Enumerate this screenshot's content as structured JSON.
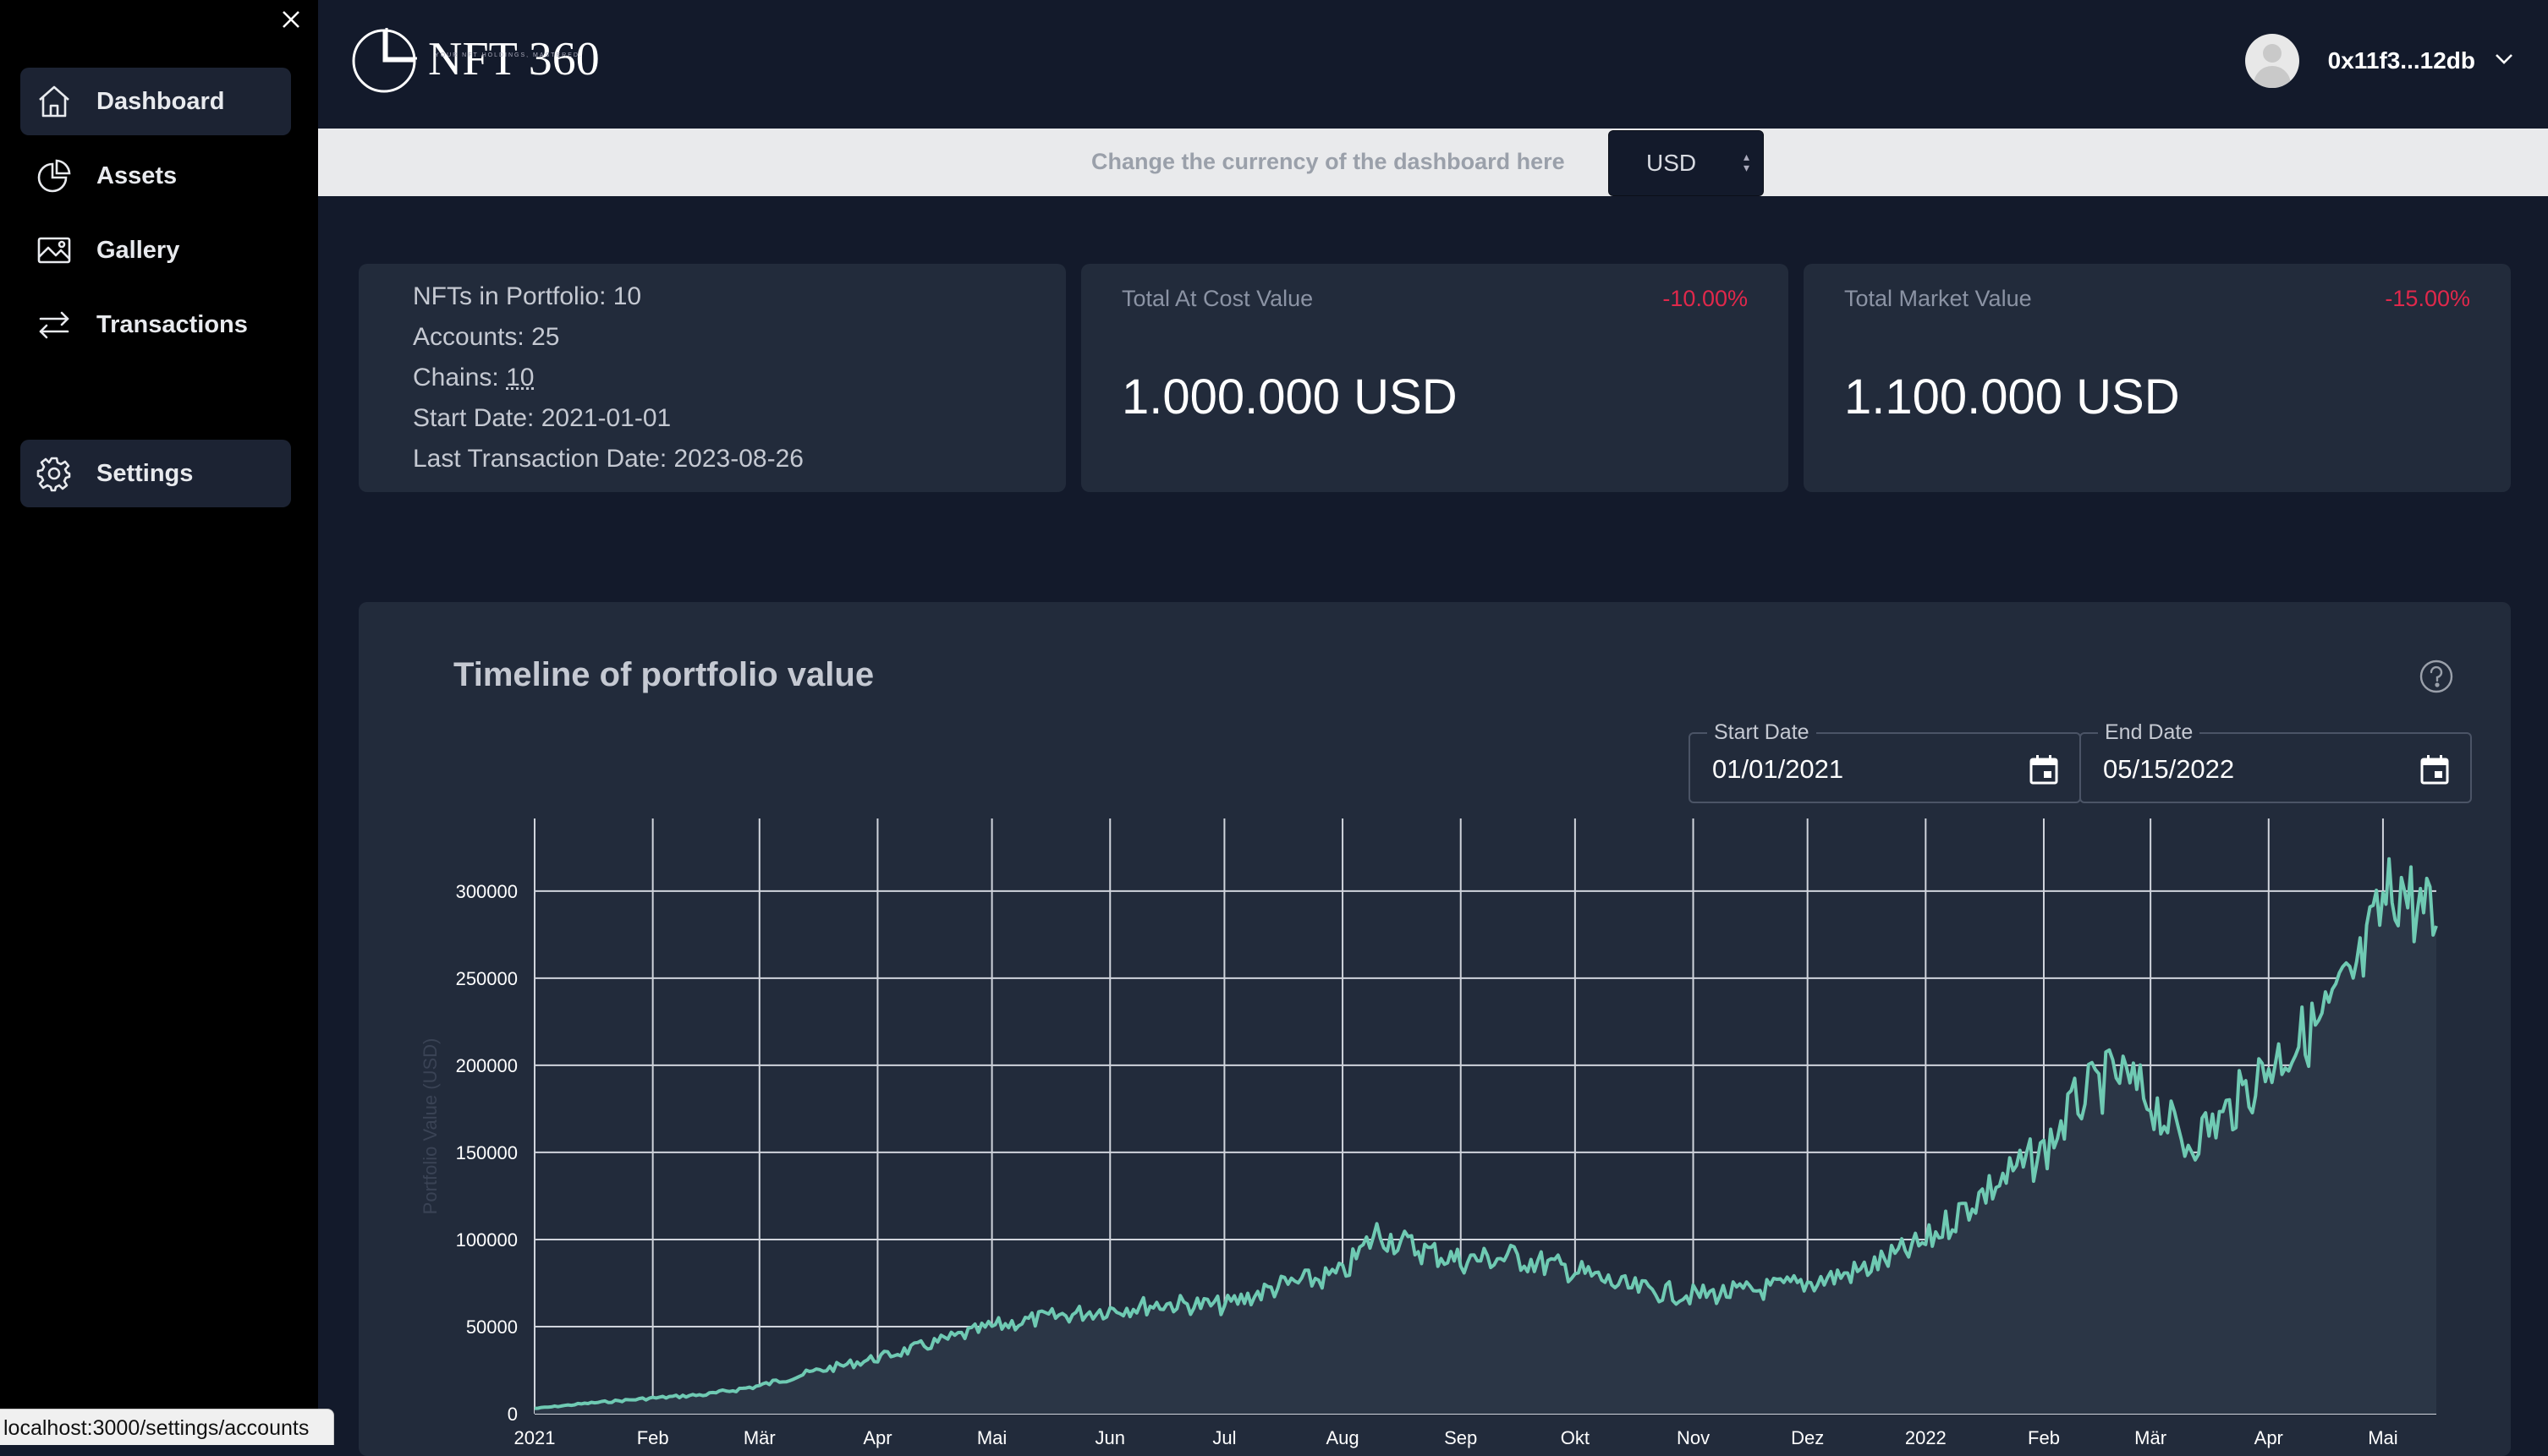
{
  "sidebar": {
    "items": [
      {
        "label": "Dashboard",
        "icon": "home-icon",
        "active": true
      },
      {
        "label": "Assets",
        "icon": "pie-chart-icon",
        "active": false
      },
      {
        "label": "Gallery",
        "icon": "image-icon",
        "active": false
      },
      {
        "label": "Transactions",
        "icon": "swap-arrows-icon",
        "active": false
      }
    ],
    "settings": {
      "label": "Settings",
      "icon": "gear-icon",
      "active": true
    }
  },
  "header": {
    "logo_text": "NFT 360",
    "logo_tagline": "YOUR NFT HOLDINGS, MASTERED.",
    "account": "0x11f3...12db"
  },
  "currency": {
    "prompt": "Change the currency of the dashboard here",
    "selected": "USD"
  },
  "summary": {
    "nfts": "NFTs in Portfolio: 10",
    "accounts": "Accounts: 25",
    "chains_label": "Chains: ",
    "chains_value": "10",
    "start_date": "Start Date: 2021-01-01",
    "last_tx": "Last Transaction Date: 2023-08-26"
  },
  "cost_card": {
    "label": "Total At Cost Value",
    "change": "-10.00%",
    "value": "1.000.000 USD"
  },
  "market_card": {
    "label": "Total Market Value",
    "change": "-15.00%",
    "value": "1.100.000 USD"
  },
  "timeline": {
    "title": "Timeline of portfolio value",
    "start_label": "Start Date",
    "start_value": "01/01/2021",
    "end_label": "End Date",
    "end_value": "05/15/2022"
  },
  "statusbar": {
    "url": "localhost:3000/settings/accounts"
  },
  "colors": {
    "background": "#131a2b",
    "card": "#222b3b",
    "line": "#6fcab3",
    "negative": "#e0284b"
  },
  "chart_data": {
    "type": "area",
    "title": "",
    "xlabel": "",
    "ylabel": "Portfolio Value (USD)",
    "ylim": [
      0,
      330000
    ],
    "grid": true,
    "x_ticks": [
      "2021",
      "Feb",
      "Mär",
      "Apr",
      "Mai",
      "Jun",
      "Jul",
      "Aug",
      "Sep",
      "Okt",
      "Nov",
      "Dez",
      "2022",
      "Feb",
      "Mär",
      "Apr",
      "Mai"
    ],
    "y_ticks": [
      0,
      50000,
      100000,
      150000,
      200000,
      250000,
      300000
    ],
    "series": [
      {
        "name": "",
        "x": [
          "2021-01-01",
          "2021-01-15",
          "2021-02-01",
          "2021-02-15",
          "2021-03-01",
          "2021-03-15",
          "2021-04-01",
          "2021-04-15",
          "2021-05-01",
          "2021-05-15",
          "2021-06-01",
          "2021-06-15",
          "2021-07-01",
          "2021-07-15",
          "2021-08-01",
          "2021-08-10",
          "2021-08-20",
          "2021-09-01",
          "2021-09-15",
          "2021-10-01",
          "2021-10-15",
          "2021-11-01",
          "2021-11-15",
          "2021-12-01",
          "2021-12-15",
          "2022-01-01",
          "2022-01-15",
          "2022-02-01",
          "2022-02-10",
          "2022-02-20",
          "2022-03-01",
          "2022-03-10",
          "2022-03-20",
          "2022-04-01",
          "2022-04-15",
          "2022-04-25",
          "2022-05-01",
          "2022-05-05",
          "2022-05-10",
          "2022-05-15"
        ],
        "values": [
          3000,
          6000,
          9000,
          11000,
          16000,
          24000,
          32000,
          40000,
          50000,
          55000,
          60000,
          63000,
          62000,
          73000,
          80000,
          104000,
          95000,
          88000,
          90000,
          82000,
          72000,
          68000,
          70000,
          75000,
          82000,
          98000,
          125000,
          150000,
          180000,
          195000,
          180000,
          155000,
          170000,
          200000,
          225000,
          255000,
          290000,
          305000,
          290000,
          280000
        ]
      }
    ]
  }
}
